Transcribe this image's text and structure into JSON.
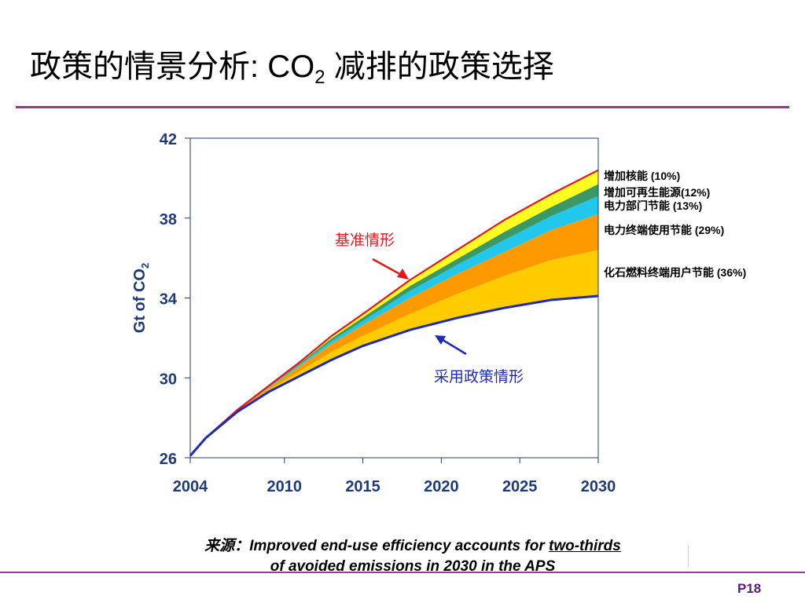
{
  "title": {
    "main": "政策的情景分析: CO",
    "sub": "2",
    "rest": " 减排的政策选择"
  },
  "source": {
    "prefix": "来源：",
    "line1_text": "Improved end-use efficiency accounts for ",
    "line1_emph": "two-thirds",
    "line2": "of avoided emissions in 2030 in the APS"
  },
  "page_number": "P18",
  "colors": {
    "accent_rule": "#993399",
    "axis_text": "#1f3a7a",
    "page_number": "#5b1a7e"
  },
  "chart_data": {
    "type": "area",
    "ylabel": "Gt of CO2",
    "ylabel_main": "Gt of CO",
    "ylabel_sub": "2",
    "ylim": [
      26,
      42
    ],
    "yticks": [
      26,
      30,
      34,
      38,
      42
    ],
    "xlim": [
      2004,
      2030
    ],
    "xticks": [
      2004,
      2010,
      2015,
      2020,
      2025,
      2030
    ],
    "grid": false,
    "x": [
      2004,
      2005,
      2007,
      2009,
      2011,
      2013,
      2015,
      2018,
      2021,
      2024,
      2027,
      2030
    ],
    "baseline": {
      "name": "基准情形",
      "color": "#e8141c",
      "values": [
        26.1,
        27.0,
        28.4,
        29.6,
        30.8,
        32.1,
        33.2,
        34.9,
        36.4,
        37.9,
        39.2,
        40.4
      ]
    },
    "policy": {
      "name": "采用政策情形",
      "color": "#1f2bb4",
      "values": [
        26.1,
        27.0,
        28.3,
        29.3,
        30.1,
        30.9,
        31.6,
        32.4,
        33.0,
        33.5,
        33.9,
        34.1
      ]
    },
    "wedges_bottom_to_top": [
      {
        "name": "化石燃料终端用户节能",
        "share": "(36%)",
        "color": "#ffcc00",
        "top": [
          26.1,
          27.0,
          28.35,
          29.4,
          30.35,
          31.3,
          32.1,
          33.2,
          34.2,
          35.1,
          35.9,
          36.4
        ]
      },
      {
        "name": "电力终端使用节能",
        "share": "(29%)",
        "color": "#ff9900",
        "top": [
          26.1,
          27.0,
          28.38,
          29.5,
          30.6,
          31.7,
          32.65,
          34.0,
          35.2,
          36.3,
          37.4,
          38.2
        ]
      },
      {
        "name": "电力部门节能",
        "share": "(13%)",
        "color": "#22c7ee",
        "top": [
          26.1,
          27.0,
          28.39,
          29.53,
          30.68,
          31.85,
          32.85,
          34.35,
          35.65,
          36.9,
          38.1,
          39.1
        ]
      },
      {
        "name": "增加可再生能源",
        "share": "(12%)",
        "color": "#3a9966",
        "top": [
          26.1,
          27.0,
          28.4,
          29.56,
          30.74,
          31.97,
          33.02,
          34.6,
          35.95,
          37.3,
          38.55,
          39.7
        ]
      },
      {
        "name": "增加核能",
        "share": "(10%)",
        "color": "#ffff22",
        "top": [
          26.1,
          27.0,
          28.4,
          29.6,
          30.8,
          32.1,
          33.2,
          34.9,
          36.4,
          37.9,
          39.2,
          40.4
        ]
      }
    ],
    "legend": [
      {
        "label": "增加核能 (10%)"
      },
      {
        "label": "增加可再生能源(12%)"
      },
      {
        "label": "电力部门节能 (13%)"
      },
      {
        "label": "电力终端使用节能 (29%)"
      },
      {
        "label": "化石燃料终端用户节能 (36%)"
      }
    ]
  }
}
